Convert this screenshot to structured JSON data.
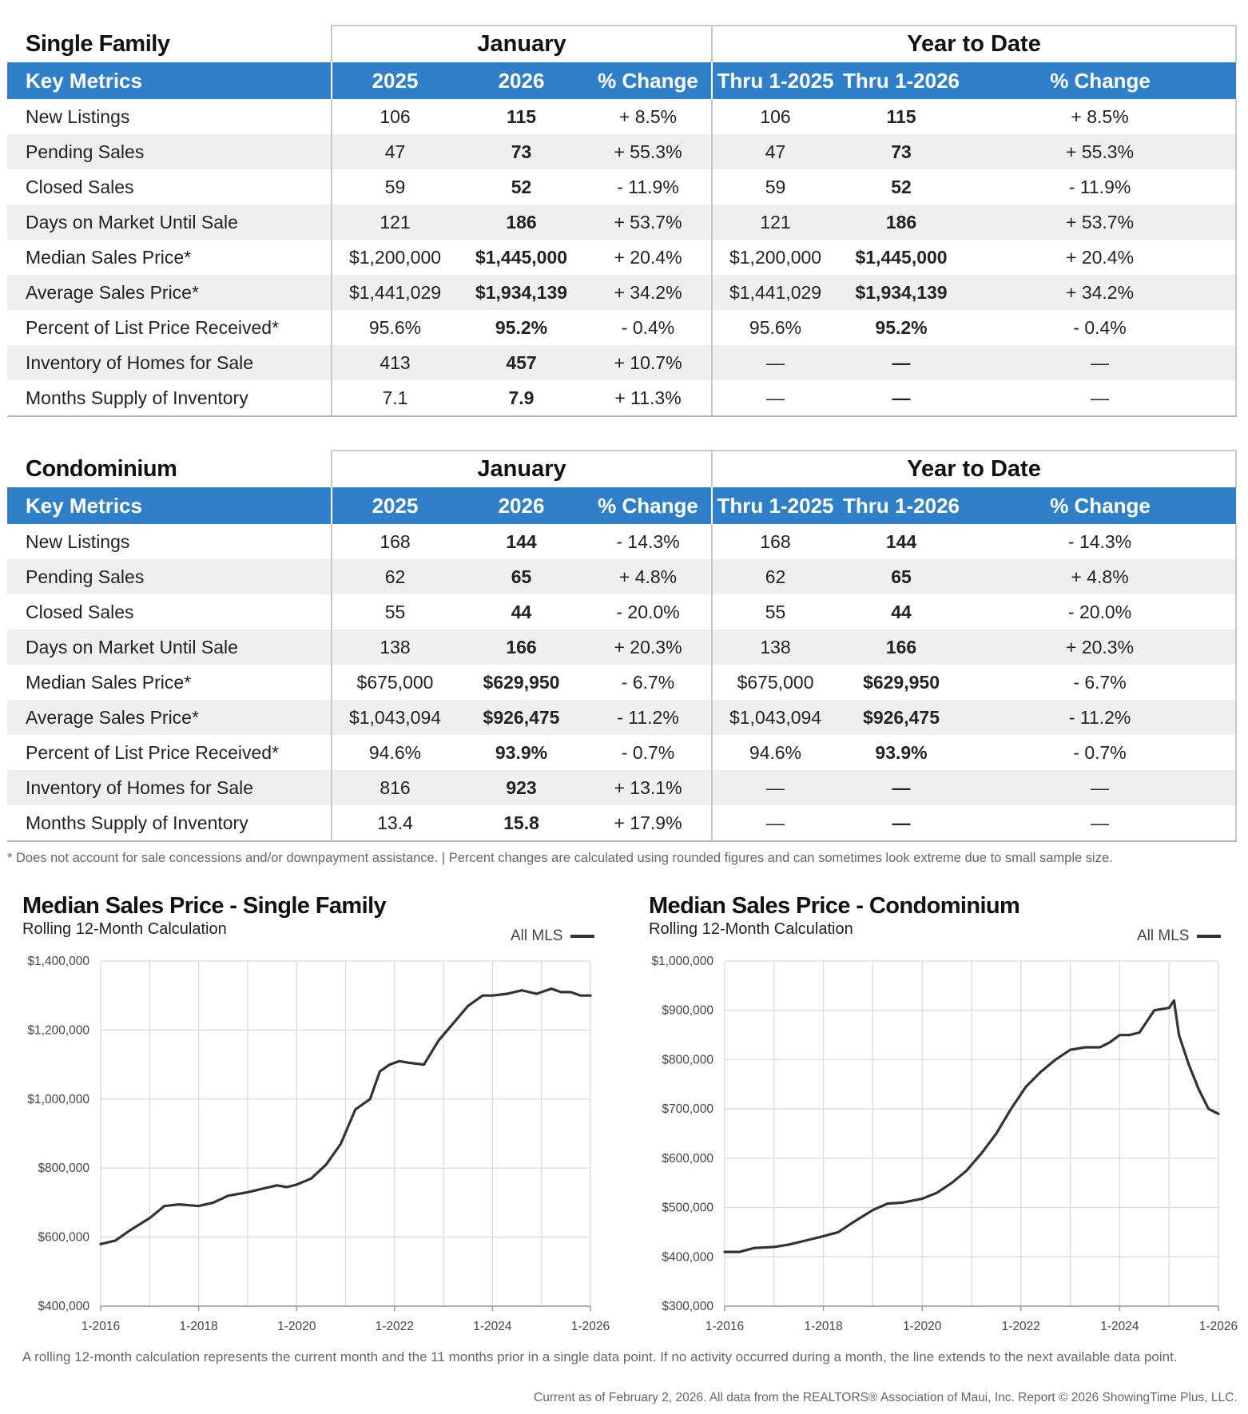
{
  "tables": [
    {
      "title": "Single Family",
      "group1": "January",
      "group2": "Year to Date",
      "headers": [
        "Key Metrics",
        "2025",
        "2026",
        "% Change",
        "Thru 1-2025",
        "Thru 1-2026",
        "% Change"
      ],
      "rows": [
        {
          "metric": "New Listings",
          "v1": "106",
          "v2": "115",
          "c1": "+ 8.5%",
          "y1": "106",
          "y2": "115",
          "c2": "+ 8.5%"
        },
        {
          "metric": "Pending Sales",
          "v1": "47",
          "v2": "73",
          "c1": "+ 55.3%",
          "y1": "47",
          "y2": "73",
          "c2": "+ 55.3%"
        },
        {
          "metric": "Closed Sales",
          "v1": "59",
          "v2": "52",
          "c1": "- 11.9%",
          "y1": "59",
          "y2": "52",
          "c2": "- 11.9%"
        },
        {
          "metric": "Days on Market Until Sale",
          "v1": "121",
          "v2": "186",
          "c1": "+ 53.7%",
          "y1": "121",
          "y2": "186",
          "c2": "+ 53.7%"
        },
        {
          "metric": "Median Sales Price*",
          "v1": "$1,200,000",
          "v2": "$1,445,000",
          "c1": "+ 20.4%",
          "y1": "$1,200,000",
          "y2": "$1,445,000",
          "c2": "+ 20.4%"
        },
        {
          "metric": "Average Sales Price*",
          "v1": "$1,441,029",
          "v2": "$1,934,139",
          "c1": "+ 34.2%",
          "y1": "$1,441,029",
          "y2": "$1,934,139",
          "c2": "+ 34.2%"
        },
        {
          "metric": "Percent of List Price Received*",
          "v1": "95.6%",
          "v2": "95.2%",
          "c1": "- 0.4%",
          "y1": "95.6%",
          "y2": "95.2%",
          "c2": "- 0.4%"
        },
        {
          "metric": "Inventory of Homes for Sale",
          "v1": "413",
          "v2": "457",
          "c1": "+ 10.7%",
          "y1": "—",
          "y2": "—",
          "c2": "—"
        },
        {
          "metric": "Months Supply of Inventory",
          "v1": "7.1",
          "v2": "7.9",
          "c1": "+ 11.3%",
          "y1": "—",
          "y2": "—",
          "c2": "—"
        }
      ]
    },
    {
      "title": "Condominium",
      "group1": "January",
      "group2": "Year to Date",
      "headers": [
        "Key Metrics",
        "2025",
        "2026",
        "% Change",
        "Thru 1-2025",
        "Thru 1-2026",
        "% Change"
      ],
      "rows": [
        {
          "metric": "New Listings",
          "v1": "168",
          "v2": "144",
          "c1": "- 14.3%",
          "y1": "168",
          "y2": "144",
          "c2": "- 14.3%"
        },
        {
          "metric": "Pending Sales",
          "v1": "62",
          "v2": "65",
          "c1": "+ 4.8%",
          "y1": "62",
          "y2": "65",
          "c2": "+ 4.8%"
        },
        {
          "metric": "Closed Sales",
          "v1": "55",
          "v2": "44",
          "c1": "- 20.0%",
          "y1": "55",
          "y2": "44",
          "c2": "- 20.0%"
        },
        {
          "metric": "Days on Market Until Sale",
          "v1": "138",
          "v2": "166",
          "c1": "+ 20.3%",
          "y1": "138",
          "y2": "166",
          "c2": "+ 20.3%"
        },
        {
          "metric": "Median Sales Price*",
          "v1": "$675,000",
          "v2": "$629,950",
          "c1": "- 6.7%",
          "y1": "$675,000",
          "y2": "$629,950",
          "c2": "- 6.7%"
        },
        {
          "metric": "Average Sales Price*",
          "v1": "$1,043,094",
          "v2": "$926,475",
          "c1": "- 11.2%",
          "y1": "$1,043,094",
          "y2": "$926,475",
          "c2": "- 11.2%"
        },
        {
          "metric": "Percent of List Price Received*",
          "v1": "94.6%",
          "v2": "93.9%",
          "c1": "- 0.7%",
          "y1": "94.6%",
          "y2": "93.9%",
          "c2": "- 0.7%"
        },
        {
          "metric": "Inventory of Homes for Sale",
          "v1": "816",
          "v2": "923",
          "c1": "+ 13.1%",
          "y1": "—",
          "y2": "—",
          "c2": "—"
        },
        {
          "metric": "Months Supply of Inventory",
          "v1": "13.4",
          "v2": "15.8",
          "c1": "+ 17.9%",
          "y1": "—",
          "y2": "—",
          "c2": "—"
        }
      ]
    }
  ],
  "footnote": "* Does not account for sale concessions and/or downpayment assistance. | Percent changes are calculated using rounded figures and can sometimes look extreme due to small sample size.",
  "chart_footnote": "A rolling 12-month calculation represents the current month and the 11 months prior in a single data point. If no activity occurred during a month, the line extends to the next available data point.",
  "footer": "Current as of February 2, 2026. All data from the REALTORS® Association of Maui, Inc. Report © 2026 ShowingTime Plus, LLC.",
  "chart_data": [
    {
      "type": "line",
      "title": "Median Sales Price - Single Family",
      "subtitle": "Rolling 12-Month Calculation",
      "legend": "All MLS",
      "legend_position": "top-right",
      "xlabel": "",
      "ylabel": "",
      "ylim": [
        400000,
        1400000
      ],
      "yticks": [
        400000,
        600000,
        800000,
        1000000,
        1200000,
        1400000
      ],
      "ytick_labels": [
        "$400,000",
        "$600,000",
        "$800,000",
        "$1,000,000",
        "$1,200,000",
        "$1,400,000"
      ],
      "xlim": [
        2016.0,
        2026.0
      ],
      "xticks": [
        2016,
        2018,
        2020,
        2022,
        2024,
        2026
      ],
      "xtick_labels": [
        "1-2016",
        "1-2018",
        "1-2020",
        "1-2022",
        "1-2024",
        "1-2026"
      ],
      "grid": true,
      "series": [
        {
          "name": "All MLS",
          "x": [
            2016.0,
            2016.3,
            2016.6,
            2017.0,
            2017.3,
            2017.6,
            2018.0,
            2018.3,
            2018.6,
            2019.0,
            2019.3,
            2019.6,
            2019.8,
            2020.0,
            2020.3,
            2020.6,
            2020.9,
            2021.2,
            2021.5,
            2021.7,
            2021.9,
            2022.1,
            2022.3,
            2022.6,
            2022.9,
            2023.2,
            2023.5,
            2023.8,
            2024.0,
            2024.3,
            2024.6,
            2024.9,
            2025.2,
            2025.4,
            2025.6,
            2025.8,
            2026.0
          ],
          "values": [
            580000,
            590000,
            620000,
            655000,
            690000,
            695000,
            690000,
            700000,
            720000,
            730000,
            740000,
            750000,
            745000,
            752000,
            770000,
            810000,
            870000,
            970000,
            1000000,
            1080000,
            1100000,
            1110000,
            1105000,
            1100000,
            1170000,
            1220000,
            1270000,
            1300000,
            1300000,
            1305000,
            1315000,
            1305000,
            1320000,
            1310000,
            1310000,
            1300000,
            1300000
          ]
        }
      ]
    },
    {
      "type": "line",
      "title": "Median Sales Price - Condominium",
      "subtitle": "Rolling 12-Month Calculation",
      "legend": "All MLS",
      "legend_position": "top-right",
      "xlabel": "",
      "ylabel": "",
      "ylim": [
        300000,
        1000000
      ],
      "yticks": [
        300000,
        400000,
        500000,
        600000,
        700000,
        800000,
        900000,
        1000000
      ],
      "ytick_labels": [
        "$300,000",
        "$400,000",
        "$500,000",
        "$600,000",
        "$700,000",
        "$800,000",
        "$900,000",
        "$1,000,000"
      ],
      "xlim": [
        2016.0,
        2026.0
      ],
      "xticks": [
        2016,
        2018,
        2020,
        2022,
        2024,
        2026
      ],
      "xtick_labels": [
        "1-2016",
        "1-2018",
        "1-2020",
        "1-2022",
        "1-2024",
        "1-2026"
      ],
      "grid": true,
      "series": [
        {
          "name": "All MLS",
          "x": [
            2016.0,
            2016.3,
            2016.6,
            2017.0,
            2017.3,
            2017.6,
            2018.0,
            2018.3,
            2018.6,
            2019.0,
            2019.3,
            2019.6,
            2020.0,
            2020.3,
            2020.6,
            2020.9,
            2021.2,
            2021.5,
            2021.8,
            2022.1,
            2022.4,
            2022.7,
            2023.0,
            2023.3,
            2023.6,
            2023.8,
            2024.0,
            2024.2,
            2024.4,
            2024.7,
            2025.0,
            2025.1,
            2025.2,
            2025.4,
            2025.6,
            2025.8,
            2026.0
          ],
          "values": [
            410000,
            410000,
            418000,
            420000,
            425000,
            432000,
            442000,
            450000,
            470000,
            495000,
            508000,
            510000,
            518000,
            530000,
            550000,
            575000,
            610000,
            650000,
            700000,
            745000,
            775000,
            800000,
            820000,
            825000,
            825000,
            835000,
            850000,
            850000,
            855000,
            900000,
            905000,
            920000,
            850000,
            790000,
            740000,
            700000,
            690000
          ]
        }
      ]
    }
  ]
}
